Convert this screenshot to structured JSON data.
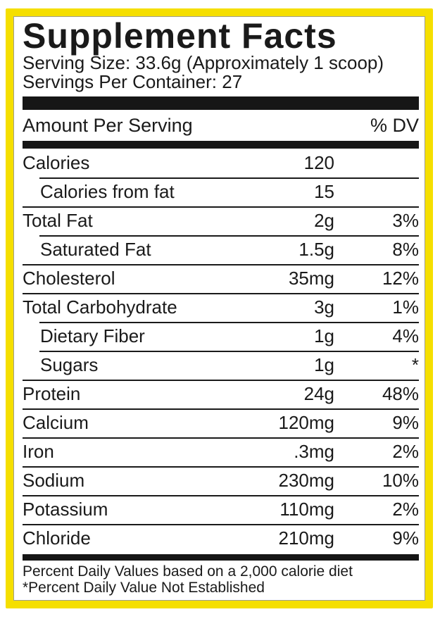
{
  "header": {
    "title": "Supplement Facts",
    "serving_size": "Serving Size: 33.6g (Approximately 1 scoop)",
    "servings_per_container": "Servings Per Container: 27"
  },
  "table": {
    "amount_col_header": "Amount Per Serving",
    "dv_col_header": "% DV",
    "rows": [
      {
        "name": "Calories",
        "amount": "120",
        "dv": ""
      },
      {
        "name": "Calories from fat",
        "amount": "15",
        "dv": ""
      },
      {
        "name": "Total Fat",
        "amount": "2g",
        "dv": "3%"
      },
      {
        "name": "Saturated Fat",
        "amount": "1.5g",
        "dv": "8%"
      },
      {
        "name": "Cholesterol",
        "amount": "35mg",
        "dv": "12%"
      },
      {
        "name": "Total Carbohydrate",
        "amount": "3g",
        "dv": "1%"
      },
      {
        "name": "Dietary Fiber",
        "amount": "1g",
        "dv": "4%"
      },
      {
        "name": "Sugars",
        "amount": "1g",
        "dv": "*"
      },
      {
        "name": "Protein",
        "amount": "24g",
        "dv": "48%"
      },
      {
        "name": "Calcium",
        "amount": "120mg",
        "dv": "9%"
      },
      {
        "name": "Iron",
        "amount": ".3mg",
        "dv": "2%"
      },
      {
        "name": "Sodium",
        "amount": "230mg",
        "dv": "10%"
      },
      {
        "name": "Potassium",
        "amount": "110mg",
        "dv": "2%"
      },
      {
        "name": "Chloride",
        "amount": "210mg",
        "dv": "9%"
      }
    ]
  },
  "footnotes": [
    "Percent Daily Values based on a 2,000 calorie diet",
    "*Percent Daily Value Not Established"
  ],
  "colors": {
    "border_yellow": "#F5DF00",
    "bar_black": "#161616",
    "text_black": "#1a1a1a"
  }
}
